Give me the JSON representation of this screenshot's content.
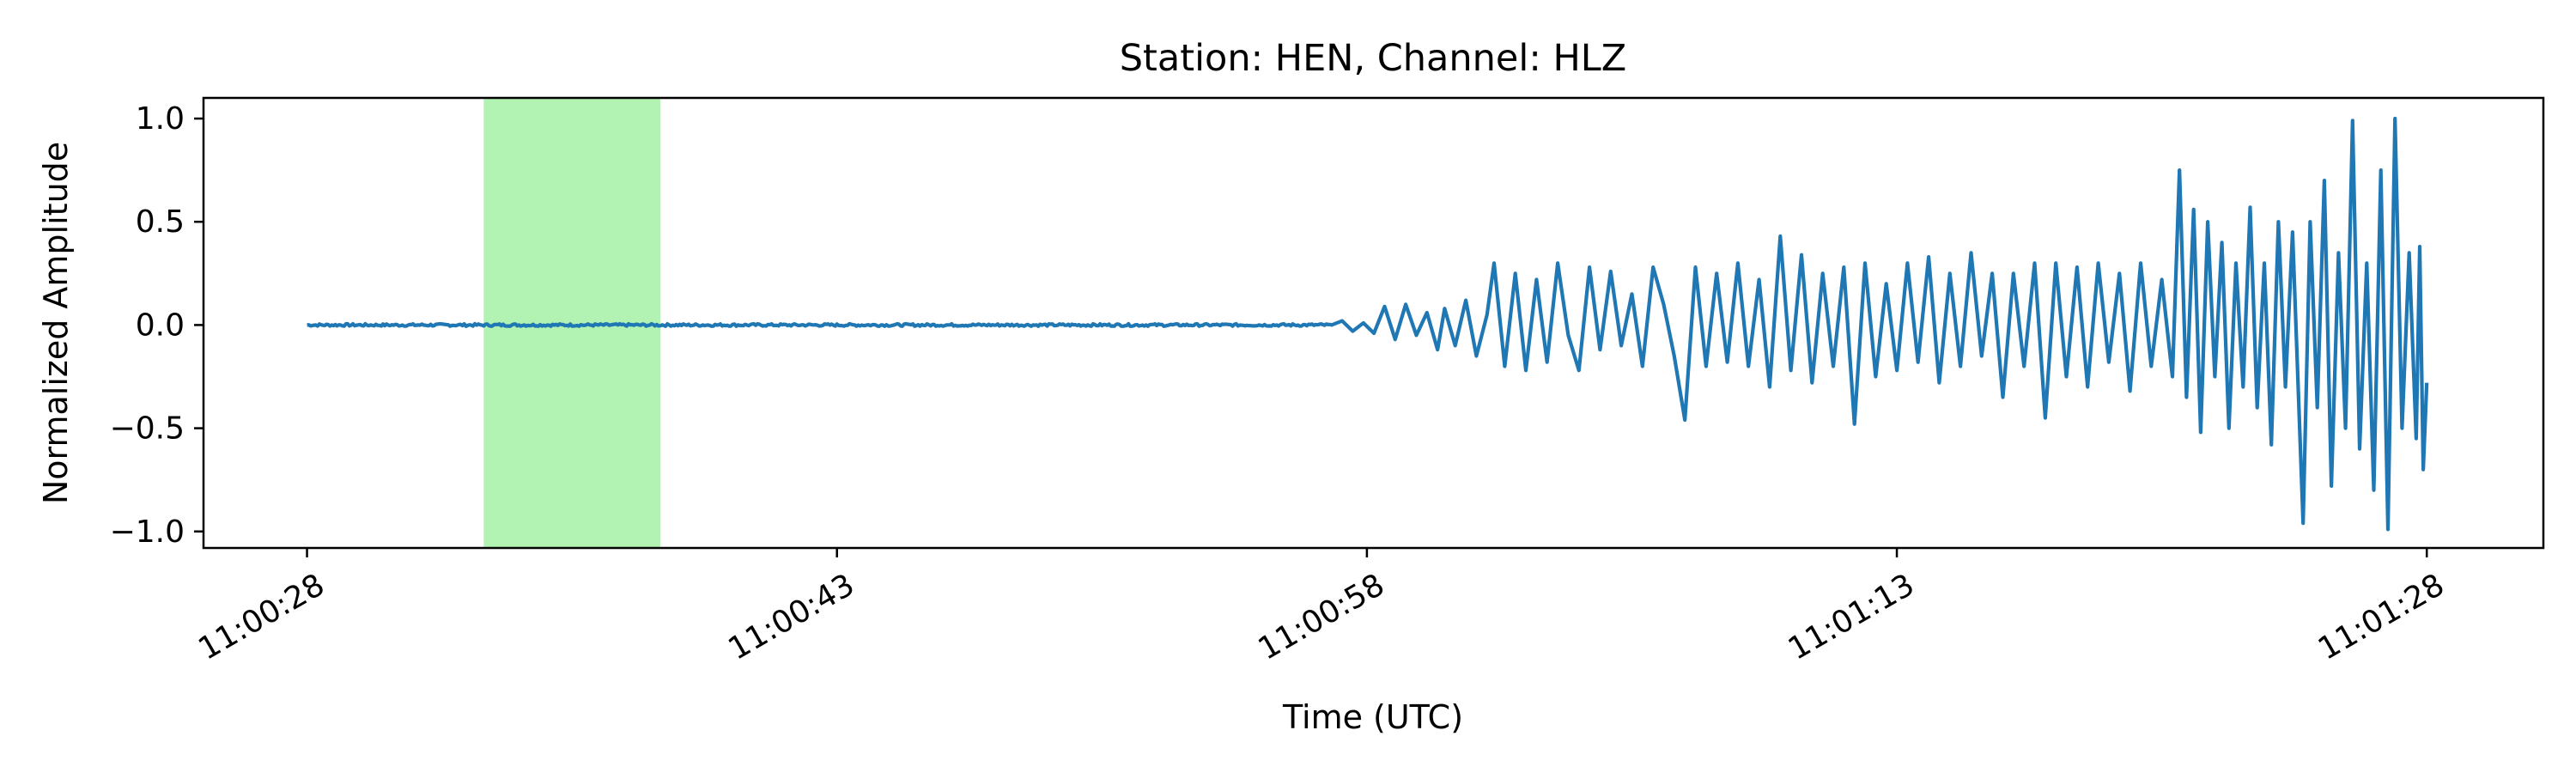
{
  "chart_data": {
    "type": "line",
    "title": "Station: HEN, Channel: HLZ",
    "xlabel": "Time (UTC)",
    "ylabel": "Normalized Amplitude",
    "x_range_seconds": [
      0,
      60
    ],
    "xlim_seconds": [
      -2.93,
      63.3
    ],
    "ylim": [
      -1.08,
      1.1
    ],
    "x_ticks": [
      {
        "label": "11:00:28",
        "value": 0
      },
      {
        "label": "11:00:43",
        "value": 15
      },
      {
        "label": "11:00:58",
        "value": 30
      },
      {
        "label": "11:01:13",
        "value": 45
      },
      {
        "label": "11:01:28",
        "value": 60
      }
    ],
    "y_ticks": [
      {
        "label": "1.0",
        "value": 1.0
      },
      {
        "label": "0.5",
        "value": 0.5
      },
      {
        "label": "0.0",
        "value": 0.0
      },
      {
        "label": "−0.5",
        "value": -0.5
      },
      {
        "label": "−1.0",
        "value": -1.0
      }
    ],
    "highlight_window": {
      "start": 5.0,
      "end": 10.0,
      "color": "#b2f2b2"
    },
    "series": [
      {
        "color": "#1f77b4",
        "noise_onset": 29.0,
        "values": [
          [
            0,
            0.0
          ],
          [
            29.0,
            0.0
          ],
          [
            29.3,
            0.02
          ],
          [
            29.6,
            -0.03
          ],
          [
            29.9,
            0.01
          ],
          [
            30.2,
            -0.04
          ],
          [
            30.5,
            0.09
          ],
          [
            30.8,
            -0.07
          ],
          [
            31.1,
            0.1
          ],
          [
            31.4,
            -0.05
          ],
          [
            31.7,
            0.06
          ],
          [
            32.0,
            -0.12
          ],
          [
            32.2,
            0.08
          ],
          [
            32.5,
            -0.1
          ],
          [
            32.8,
            0.12
          ],
          [
            33.1,
            -0.15
          ],
          [
            33.4,
            0.05
          ],
          [
            33.6,
            0.3
          ],
          [
            33.9,
            -0.2
          ],
          [
            34.2,
            0.25
          ],
          [
            34.5,
            -0.22
          ],
          [
            34.8,
            0.22
          ],
          [
            35.1,
            -0.18
          ],
          [
            35.4,
            0.3
          ],
          [
            35.7,
            -0.05
          ],
          [
            36.0,
            -0.22
          ],
          [
            36.3,
            0.28
          ],
          [
            36.6,
            -0.12
          ],
          [
            36.9,
            0.26
          ],
          [
            37.2,
            -0.1
          ],
          [
            37.5,
            0.15
          ],
          [
            37.8,
            -0.2
          ],
          [
            38.1,
            0.28
          ],
          [
            38.4,
            0.1
          ],
          [
            38.7,
            -0.15
          ],
          [
            39.0,
            -0.46
          ],
          [
            39.3,
            0.28
          ],
          [
            39.6,
            -0.2
          ],
          [
            39.9,
            0.25
          ],
          [
            40.2,
            -0.18
          ],
          [
            40.5,
            0.3
          ],
          [
            40.8,
            -0.2
          ],
          [
            41.1,
            0.22
          ],
          [
            41.4,
            -0.3
          ],
          [
            41.7,
            0.43
          ],
          [
            42.0,
            -0.22
          ],
          [
            42.3,
            0.34
          ],
          [
            42.6,
            -0.28
          ],
          [
            42.9,
            0.25
          ],
          [
            43.2,
            -0.2
          ],
          [
            43.5,
            0.28
          ],
          [
            43.8,
            -0.48
          ],
          [
            44.1,
            0.3
          ],
          [
            44.4,
            -0.25
          ],
          [
            44.7,
            0.2
          ],
          [
            45.0,
            -0.22
          ],
          [
            45.3,
            0.3
          ],
          [
            45.6,
            -0.18
          ],
          [
            45.9,
            0.33
          ],
          [
            46.2,
            -0.28
          ],
          [
            46.5,
            0.25
          ],
          [
            46.8,
            -0.2
          ],
          [
            47.1,
            0.35
          ],
          [
            47.4,
            -0.15
          ],
          [
            47.7,
            0.25
          ],
          [
            48.0,
            -0.35
          ],
          [
            48.3,
            0.25
          ],
          [
            48.6,
            -0.2
          ],
          [
            48.9,
            0.3
          ],
          [
            49.2,
            -0.45
          ],
          [
            49.5,
            0.3
          ],
          [
            49.8,
            -0.25
          ],
          [
            50.1,
            0.28
          ],
          [
            50.4,
            -0.3
          ],
          [
            50.7,
            0.3
          ],
          [
            51.0,
            -0.18
          ],
          [
            51.3,
            0.25
          ],
          [
            51.6,
            -0.32
          ],
          [
            51.9,
            0.3
          ],
          [
            52.2,
            -0.2
          ],
          [
            52.5,
            0.22
          ],
          [
            52.8,
            -0.25
          ],
          [
            53.0,
            0.75
          ],
          [
            53.2,
            -0.35
          ],
          [
            53.4,
            0.56
          ],
          [
            53.6,
            -0.52
          ],
          [
            53.8,
            0.5
          ],
          [
            54.0,
            -0.25
          ],
          [
            54.2,
            0.4
          ],
          [
            54.4,
            -0.5
          ],
          [
            54.6,
            0.3
          ],
          [
            54.8,
            -0.3
          ],
          [
            55.0,
            0.57
          ],
          [
            55.2,
            -0.4
          ],
          [
            55.4,
            0.3
          ],
          [
            55.6,
            -0.58
          ],
          [
            55.8,
            0.5
          ],
          [
            56.0,
            -0.3
          ],
          [
            56.2,
            0.45
          ],
          [
            56.5,
            -0.96
          ],
          [
            56.7,
            0.5
          ],
          [
            56.9,
            -0.4
          ],
          [
            57.1,
            0.7
          ],
          [
            57.3,
            -0.78
          ],
          [
            57.5,
            0.35
          ],
          [
            57.7,
            -0.5
          ],
          [
            57.9,
            0.99
          ],
          [
            58.1,
            -0.6
          ],
          [
            58.3,
            0.3
          ],
          [
            58.5,
            -0.8
          ],
          [
            58.7,
            0.75
          ],
          [
            58.9,
            -0.99
          ],
          [
            59.1,
            1.0
          ],
          [
            59.3,
            -0.5
          ],
          [
            59.5,
            0.35
          ],
          [
            59.7,
            -0.55
          ],
          [
            59.8,
            0.38
          ],
          [
            59.9,
            -0.7
          ],
          [
            60.0,
            -0.28
          ]
        ]
      }
    ],
    "grid": false,
    "legend": "none"
  }
}
